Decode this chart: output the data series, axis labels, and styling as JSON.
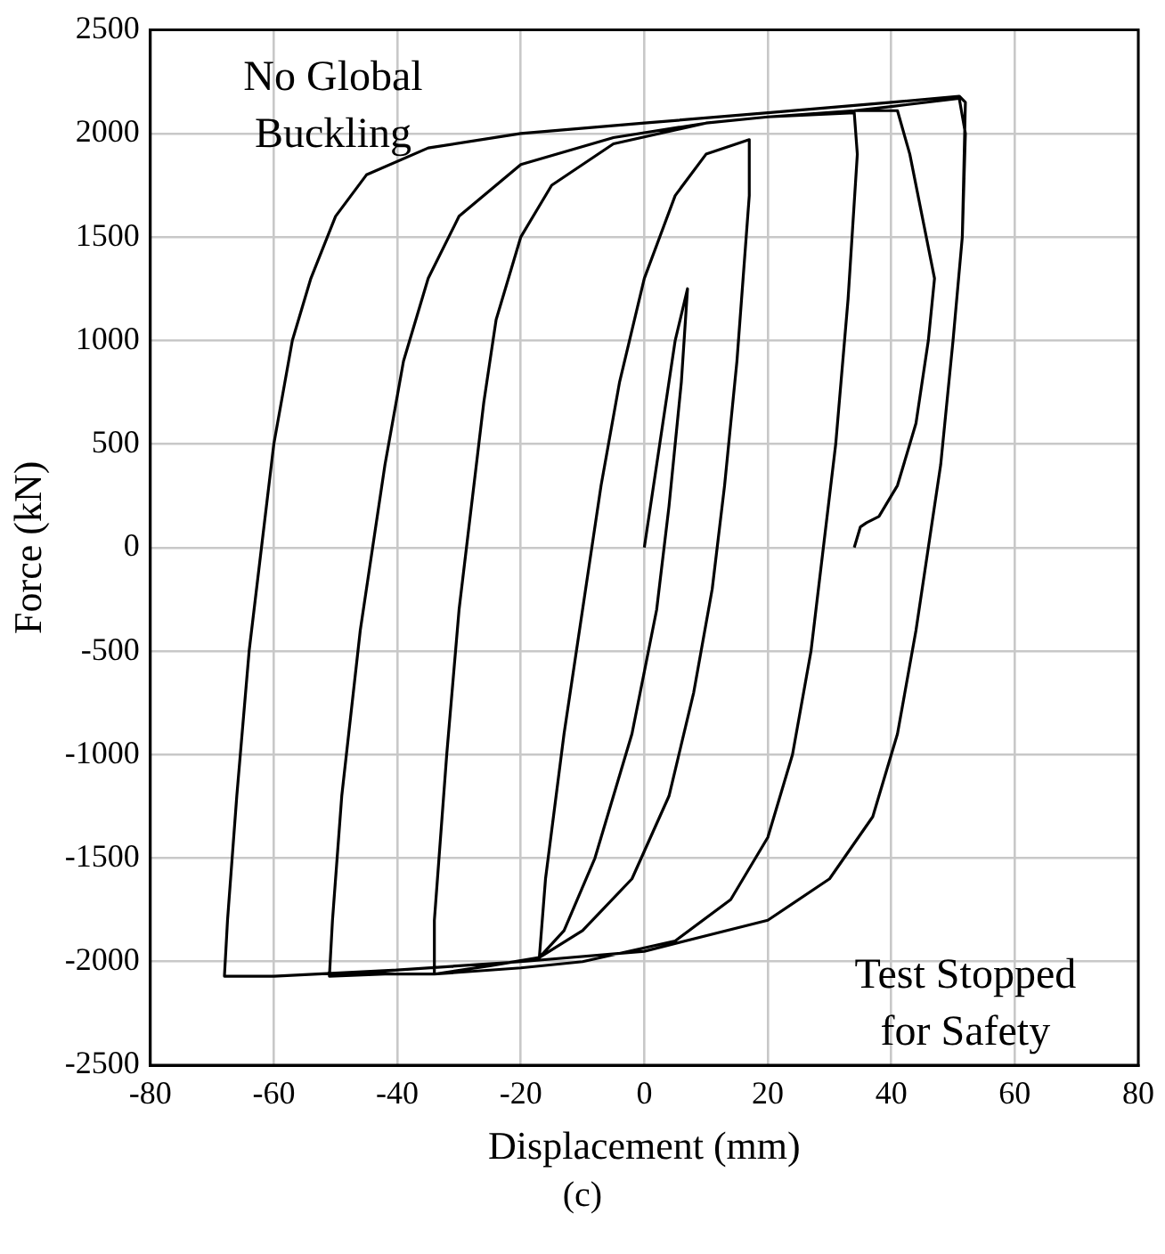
{
  "chart_data": {
    "type": "line",
    "xlabel": "Displacement (mm)",
    "ylabel": "Force (kN)",
    "xlim": [
      -80,
      80
    ],
    "xticks": [
      -80,
      -60,
      -40,
      -20,
      0,
      20,
      40,
      60,
      80
    ],
    "ylim": [
      -2500,
      2500
    ],
    "yticks": [
      -2500,
      -2000,
      -1500,
      -1000,
      -500,
      0,
      500,
      1000,
      1500,
      2000,
      2500
    ],
    "grid": true,
    "marker": "none",
    "line_style": "solid",
    "annotations": [
      "No Global Buckling",
      "Test Stopped for Safety",
      "(c)"
    ],
    "series": [
      {
        "color": "#000000",
        "x": [
          0,
          3,
          5,
          7,
          6,
          4,
          2,
          -2,
          -8,
          -13,
          -17,
          -16,
          -13,
          -10,
          -7,
          -4,
          0,
          5,
          10,
          17,
          17,
          15,
          13,
          11,
          8,
          4,
          -2,
          -10,
          -17,
          -25,
          -34,
          -34,
          -32,
          -30,
          -28,
          -26,
          -24,
          -20,
          -15,
          -5,
          10,
          20,
          34,
          34.5,
          33,
          31,
          29,
          27,
          24,
          20,
          14,
          5,
          -10,
          -20,
          -34,
          -42,
          -51,
          -50.5,
          -49,
          -46,
          -44,
          -42,
          -39,
          -35,
          -30,
          -20,
          -5,
          10,
          20,
          34,
          40,
          51,
          52,
          51.5,
          50,
          48,
          46,
          44,
          41,
          37,
          30,
          20,
          0,
          -20,
          -40,
          -60,
          -68,
          -67.5,
          -66,
          -64,
          -62,
          -60,
          -57,
          -54,
          -50,
          -45,
          -35,
          -20,
          0,
          20,
          40,
          51,
          52,
          51.5,
          50,
          48,
          46,
          44,
          41,
          37,
          30,
          20,
          0,
          -20,
          -40,
          -51,
          -50.5,
          -49,
          -46,
          -44,
          -42,
          -39,
          -35,
          -30,
          -20,
          -5,
          10,
          20,
          34,
          41,
          43,
          45,
          47,
          46,
          44,
          41,
          38,
          36,
          35,
          34
        ],
        "values": [
          0,
          600,
          1000,
          1250,
          800,
          200,
          -300,
          -900,
          -1500,
          -1850,
          -1980,
          -1600,
          -900,
          -300,
          300,
          800,
          1300,
          1700,
          1900,
          1970,
          1700,
          900,
          300,
          -200,
          -700,
          -1200,
          -1600,
          -1850,
          -1980,
          -2020,
          -2060,
          -1800,
          -1000,
          -300,
          200,
          700,
          1100,
          1500,
          1750,
          1950,
          2050,
          2080,
          2100,
          1900,
          1200,
          500,
          0,
          -500,
          -1000,
          -1400,
          -1700,
          -1900,
          -2000,
          -2030,
          -2060,
          -2060,
          -2070,
          -1800,
          -1200,
          -400,
          0,
          400,
          900,
          1300,
          1600,
          1850,
          1980,
          2050,
          2080,
          2110,
          2130,
          2170,
          2000,
          1500,
          1000,
          400,
          0,
          -400,
          -900,
          -1300,
          -1600,
          -1800,
          -1950,
          -2000,
          -2040,
          -2070,
          -2070,
          -1800,
          -1200,
          -500,
          0,
          500,
          1000,
          1300,
          1600,
          1800,
          1930,
          2000,
          2050,
          2100,
          2150,
          2180,
          2150,
          1500,
          1000,
          400,
          0,
          -400,
          -900,
          -1300,
          -1600,
          -1800,
          -1950,
          -2000,
          -2040,
          -2070,
          -1800,
          -1200,
          -400,
          0,
          400,
          900,
          1300,
          1600,
          1850,
          1980,
          2050,
          2080,
          2110,
          2110,
          1900,
          1600,
          1300,
          1000,
          600,
          300,
          150,
          120,
          100,
          0
        ]
      }
    ]
  }
}
